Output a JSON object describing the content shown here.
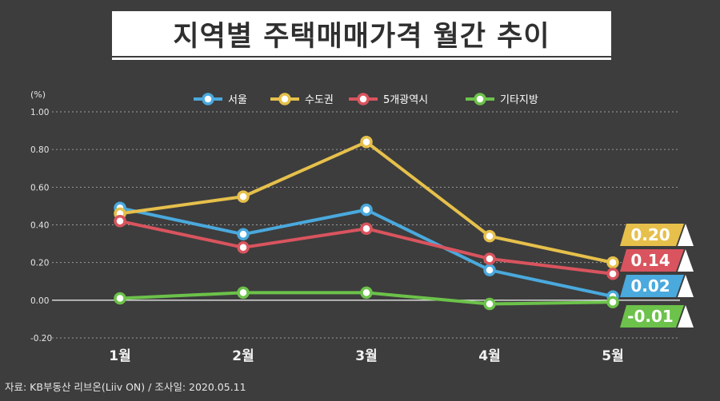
{
  "title": "지역별 주택매매가격 월간 추이",
  "source": "자료: KB부동산 리브온(Liiv ON)  / 조사일: 2020.05.11",
  "colors": {
    "background": "#3d3d3d",
    "seoul": "#4aa9dd",
    "capital": "#e6c04b",
    "metro": "#d9545e",
    "others": "#6cc24a"
  },
  "chart_data": {
    "type": "line",
    "unit_label": "(%)",
    "categories": [
      "1월",
      "2월",
      "3월",
      "4월",
      "5월"
    ],
    "ylim": [
      -0.2,
      1.0
    ],
    "yticks": [
      "1.00",
      "0.80",
      "0.60",
      "0.40",
      "0.20",
      "0.00",
      "-0.20"
    ],
    "ytick_values": [
      1.0,
      0.8,
      0.6,
      0.4,
      0.2,
      0.0,
      -0.2
    ],
    "grid": true,
    "legend_position": "top",
    "series": [
      {
        "name": "서울",
        "color": "#4aa9dd",
        "values": [
          0.49,
          0.35,
          0.48,
          0.16,
          0.02
        ],
        "end_label": "0.02"
      },
      {
        "name": "수도권",
        "color": "#e6c04b",
        "values": [
          0.46,
          0.55,
          0.84,
          0.34,
          0.2
        ],
        "end_label": "0.20"
      },
      {
        "name": "5개광역시",
        "color": "#d9545e",
        "values": [
          0.42,
          0.28,
          0.38,
          0.22,
          0.14
        ],
        "end_label": "0.14"
      },
      {
        "name": "기타지방",
        "color": "#6cc24a",
        "values": [
          0.01,
          0.04,
          0.04,
          -0.02,
          -0.01
        ],
        "end_label": "-0.01"
      }
    ]
  }
}
